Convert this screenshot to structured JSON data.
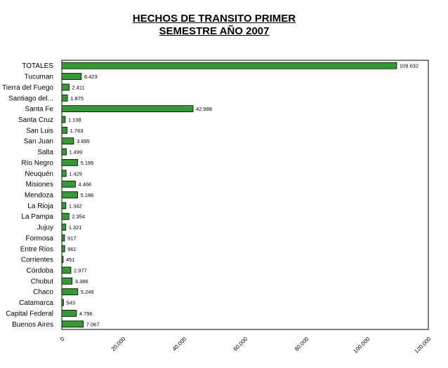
{
  "chart_data": {
    "type": "bar",
    "orientation": "horizontal",
    "title_lines": [
      "HECHOS DE TRANSITO PRIMER",
      "SEMESTRE AÑO 2007"
    ],
    "categories": [
      "TOTALES",
      "Tucuman",
      "Tierra del Fuego",
      "Santiago del...",
      "Santa Fe",
      "Santa Cruz",
      "San Luis",
      "San Juan",
      "Salta",
      "Río Negro",
      "Neuquén",
      "Misiones",
      "Mendoza",
      "La Rioja",
      "La Pampa",
      "Jujuy",
      "Formosa",
      "Entre Ríos",
      "Corrientes",
      "Córdoba",
      "Chubut",
      "Chaco",
      "Catamarca",
      "Capital Federal",
      "Buenos Aires"
    ],
    "values": [
      109632,
      6423,
      2411,
      1875,
      42988,
      1138,
      1763,
      3895,
      1499,
      5195,
      1429,
      4466,
      5186,
      1342,
      2354,
      1321,
      917,
      961,
      451,
      2977,
      3386,
      5249,
      543,
      4796,
      7067
    ],
    "value_labels": [
      "109.632",
      "6.423",
      "2.411",
      "1.875",
      "42.988",
      "1.138",
      "1.763",
      "3.895",
      "1.499",
      "5.195",
      "1.429",
      "4.466",
      "5.186",
      "1.342",
      "2.354",
      "1.321",
      "917",
      "961",
      "451",
      "2.977",
      "3.386",
      "5.249",
      "543",
      "4.796",
      "7.067"
    ],
    "x_ticks": [
      0,
      20000,
      40000,
      60000,
      80000,
      100000,
      120000
    ],
    "x_tick_labels": [
      "0",
      "20.000",
      "40.000",
      "60.000",
      "80.000",
      "100.000",
      "120.000"
    ],
    "xlim": [
      0,
      120000
    ],
    "bar_color": "#339933",
    "bar_outline": "#000000",
    "grid": false,
    "legend": "none"
  }
}
